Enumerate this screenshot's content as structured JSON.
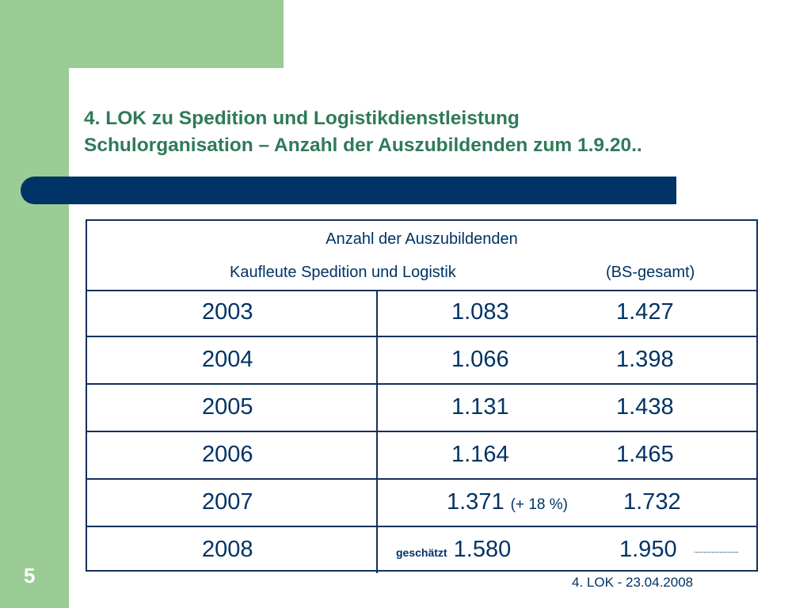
{
  "title": {
    "line1": "4. LOK zu Spedition und Logistikdienstleistung",
    "line2": "Schulorganisation – Anzahl der Auszubildenden zum 1.9.20.."
  },
  "table": {
    "header_line1": "Anzahl der Auszubildenden",
    "header_line2": "Kaufleute Spedition und Logistik",
    "header_line2_right": "(BS-gesamt)",
    "rows": [
      {
        "year": "2003",
        "kaufleute": "1.083",
        "gesamt": "1.427"
      },
      {
        "year": "2004",
        "kaufleute": "1.066",
        "gesamt": "1.398"
      },
      {
        "year": "2005",
        "kaufleute": "1.131",
        "gesamt": "1.438"
      },
      {
        "year": "2006",
        "kaufleute": "1.164",
        "gesamt": "1.465"
      },
      {
        "year": "2007",
        "kaufleute": "1.371",
        "note": "(+ 18 %)",
        "gesamt": "1.732"
      },
      {
        "year": "2008",
        "prefix": "geschätzt",
        "kaufleute": "1.580",
        "gesamt": "1.950"
      }
    ]
  },
  "slide_number": "5",
  "footer": "4. LOK - 23.04.2008",
  "colors": {
    "accent_green": "#9ccc96",
    "title_green": "#2f7a59",
    "navy": "#003366"
  }
}
